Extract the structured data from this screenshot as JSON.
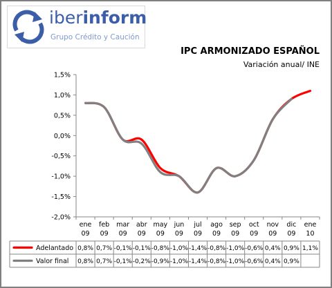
{
  "logo": {
    "name_light": "iber",
    "name_bold": "inform",
    "tagline": "Grupo Crédito y Caución"
  },
  "chart_data": {
    "type": "line",
    "title": "IPC ARMONIZADO ESPAÑOL",
    "subtitle": "Variación anual/ INE",
    "categories": [
      [
        "ene",
        "09"
      ],
      [
        "feb",
        "09"
      ],
      [
        "mar",
        "09"
      ],
      [
        "abr",
        "09"
      ],
      [
        "may",
        "09"
      ],
      [
        "jun",
        "09"
      ],
      [
        "jul",
        "09"
      ],
      [
        "ago",
        "09"
      ],
      [
        "sep",
        "09"
      ],
      [
        "oct",
        "09"
      ],
      [
        "nov",
        "09"
      ],
      [
        "dic",
        "09"
      ],
      [
        "ene",
        "10"
      ]
    ],
    "ylim": [
      -2.0,
      1.5
    ],
    "yticks": [
      1.5,
      1.0,
      0.5,
      0.0,
      -0.5,
      -1.0,
      -1.5,
      -2.0
    ],
    "ytick_labels": [
      "1,5%",
      "1,0%",
      "0,5%",
      "0,0%",
      "-0,5%",
      "-1,0%",
      "-1,5%",
      "-2,0%"
    ],
    "grid": false,
    "series": [
      {
        "name": "Adelantado",
        "color": "#ff0000",
        "values": [
          0.8,
          0.7,
          -0.1,
          -0.1,
          -0.8,
          -1.0,
          -1.4,
          -0.8,
          -1.0,
          -0.6,
          0.4,
          0.9,
          1.1
        ],
        "labels": [
          "0,8%",
          "0,7%",
          "-0,1%",
          "-0,1%",
          "-0,8%",
          "-1,0%",
          "-1,4%",
          "-0,8%",
          "-1,0%",
          "-0,6%",
          "0,4%",
          "0,9%",
          "1,1%"
        ]
      },
      {
        "name": "Valor final",
        "color": "#808080",
        "values": [
          0.8,
          0.7,
          -0.1,
          -0.2,
          -0.9,
          -1.0,
          -1.4,
          -0.8,
          -1.0,
          -0.6,
          0.4,
          0.9,
          null
        ],
        "labels": [
          "0,8%",
          "0,7%",
          "-0,1%",
          "-0,2%",
          "-0,9%",
          "-1,0%",
          "-1,4%",
          "-0,8%",
          "-1,0%",
          "-0,6%",
          "0,4%",
          "0,9%",
          ""
        ]
      }
    ]
  }
}
